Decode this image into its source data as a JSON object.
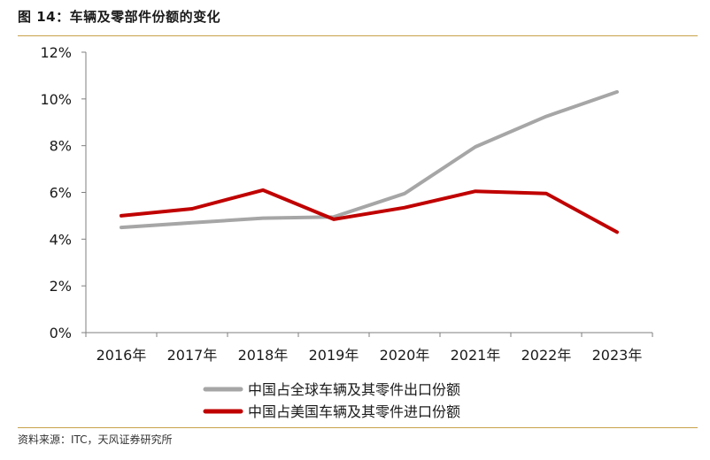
{
  "figure": {
    "title": "图 14：车辆及零部件份额的变化",
    "source": "资料来源：ITC，天风证券研究所"
  },
  "colors": {
    "accent_rule": "#c8a24a"
  },
  "chart_data": {
    "type": "line",
    "title": "",
    "xlabel": "",
    "ylabel": "",
    "x": [
      "2016年",
      "2017年",
      "2018年",
      "2019年",
      "2020年",
      "2021年",
      "2022年",
      "2023年"
    ],
    "ylim": [
      0,
      12
    ],
    "yticks": [
      0,
      2,
      4,
      6,
      8,
      10,
      12
    ],
    "ytick_format": "%",
    "grid": false,
    "legend_position": "bottom",
    "series": [
      {
        "name": "中国占全球车辆及其零件出口份额",
        "color": "#a6a6a6",
        "values": [
          4.5,
          4.7,
          4.9,
          4.95,
          5.95,
          7.95,
          9.25,
          10.3
        ]
      },
      {
        "name": "中国占美国车辆及其零件进口份额",
        "color": "#c00000",
        "values": [
          5.0,
          5.3,
          6.1,
          4.85,
          5.35,
          6.05,
          5.95,
          4.3
        ]
      }
    ]
  }
}
